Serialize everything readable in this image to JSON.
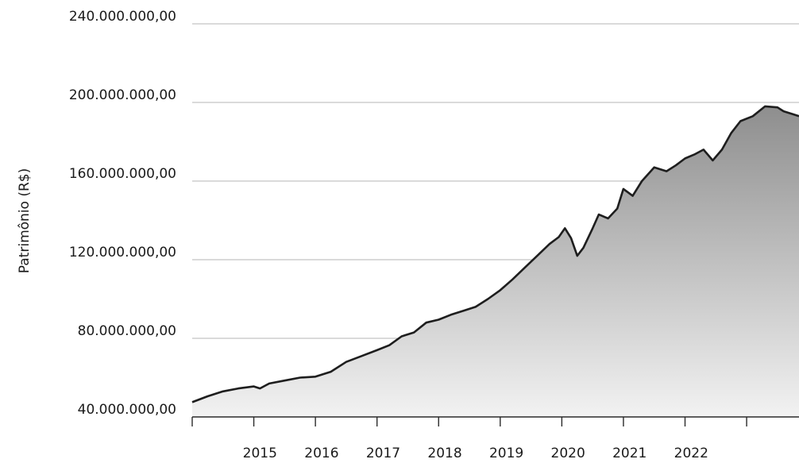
{
  "chart_data": {
    "type": "area",
    "ylabel": "Patrimônio (R$)",
    "xlabel": "",
    "title": "",
    "ylim": [
      40000000,
      240000000
    ],
    "xlim": [
      2014.0,
      2023.85
    ],
    "y_ticks": [
      40000000,
      80000000,
      120000000,
      160000000,
      200000000,
      240000000
    ],
    "y_tick_labels": [
      "40.000.000,00",
      "80.000.000,00",
      "120.000.000,00",
      "160.000.000,00",
      "200.000.000,00",
      "240.000.000,00"
    ],
    "x_tick_labels": [
      "2015",
      "2016",
      "2017",
      "2018",
      "2019",
      "2020",
      "2021",
      "2022"
    ],
    "grid": "horizontal",
    "legend": "none",
    "colors": {
      "line": "#1e1e1e",
      "fill_top": "#8e8e8e",
      "fill_bottom": "#f2f2f2",
      "grid": "#b4b4b4"
    },
    "series": [
      {
        "x": [
          2014.0,
          2014.25,
          2014.5,
          2014.75,
          2015.0,
          2015.1,
          2015.25,
          2015.5,
          2015.75,
          2016.0,
          2016.25,
          2016.5,
          2016.75,
          2017.0,
          2017.2,
          2017.4,
          2017.6,
          2017.8,
          2018.0,
          2018.2,
          2018.4,
          2018.6,
          2018.8,
          2019.0,
          2019.2,
          2019.4,
          2019.6,
          2019.8,
          2019.95,
          2020.05,
          2020.15,
          2020.25,
          2020.35,
          2020.5,
          2020.6,
          2020.75,
          2020.9,
          2021.0,
          2021.15,
          2021.3,
          2021.5,
          2021.7,
          2021.85,
          2022.0,
          2022.15,
          2022.3,
          2022.45,
          2022.6,
          2022.75,
          2022.9,
          2023.1,
          2023.3,
          2023.5,
          2023.6,
          2023.75,
          2023.85
        ],
        "y": [
          47500000,
          50500000,
          53000000,
          54500000,
          55500000,
          54500000,
          57000000,
          58500000,
          60000000,
          60500000,
          63000000,
          68000000,
          71000000,
          74000000,
          76500000,
          81000000,
          83000000,
          88000000,
          89500000,
          92000000,
          94000000,
          96000000,
          100000000,
          104500000,
          110000000,
          116000000,
          122000000,
          128000000,
          131500000,
          136000000,
          131000000,
          122000000,
          126000000,
          136000000,
          143000000,
          141000000,
          146000000,
          156000000,
          152500000,
          160000000,
          167000000,
          165000000,
          168000000,
          171500000,
          173500000,
          176000000,
          170500000,
          176000000,
          184500000,
          190500000,
          193000000,
          198000000,
          197500000,
          195500000,
          194000000,
          193000000
        ]
      }
    ]
  }
}
